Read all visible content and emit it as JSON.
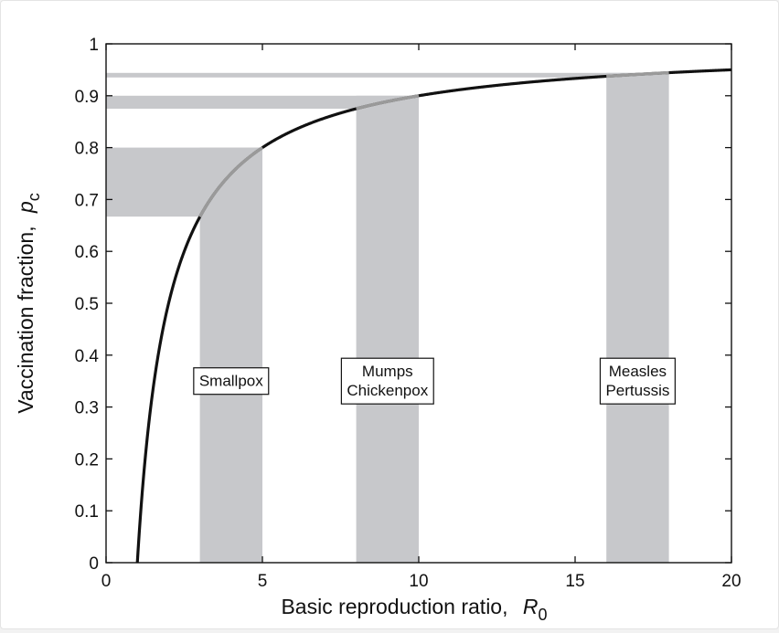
{
  "chart_data": {
    "type": "line",
    "title": "",
    "xlabel": "Basic reproduction ratio,",
    "xlabel_symbol": "R",
    "xlabel_subscript": "0",
    "ylabel": "Vaccination fraction,",
    "ylabel_symbol": "p",
    "ylabel_subscript": "c",
    "xlim": [
      0,
      20
    ],
    "ylim": [
      0,
      1
    ],
    "xticks": [
      "0",
      "5",
      "10",
      "15",
      "20"
    ],
    "yticks": [
      "0",
      "0.1",
      "0.2",
      "0.3",
      "0.4",
      "0.5",
      "0.6",
      "0.7",
      "0.8",
      "0.9",
      "1"
    ],
    "grid": false,
    "curve": {
      "formula": "p_c = 1 - 1/R0",
      "x": [
        1,
        1.1,
        1.2,
        1.35,
        1.5,
        1.75,
        2,
        2.5,
        3,
        3.5,
        4,
        5,
        6,
        7,
        8,
        9,
        10,
        12,
        14,
        16,
        18,
        20
      ],
      "y": [
        0,
        0.091,
        0.167,
        0.259,
        0.333,
        0.429,
        0.5,
        0.6,
        0.667,
        0.714,
        0.75,
        0.8,
        0.833,
        0.857,
        0.875,
        0.889,
        0.9,
        0.917,
        0.929,
        0.938,
        0.944,
        0.95
      ],
      "color": "#111111"
    },
    "bands": [
      {
        "name": "Smallpox",
        "lines": [
          "Smallpox"
        ],
        "r0_range": [
          3,
          5
        ],
        "pc_range": [
          0.667,
          0.8
        ]
      },
      {
        "name": "Mumps Chickenpox",
        "lines": [
          "Mumps",
          "Chickenpox"
        ],
        "r0_range": [
          8,
          10
        ],
        "pc_range": [
          0.875,
          0.9
        ]
      },
      {
        "name": "Measles Pertussis",
        "lines": [
          "Measles",
          "Pertussis"
        ],
        "r0_range": [
          16,
          18
        ],
        "pc_range": [
          0.938,
          0.944
        ]
      }
    ],
    "band_color": "#c7c8cb",
    "highlight_color": "#9a9a9a"
  }
}
